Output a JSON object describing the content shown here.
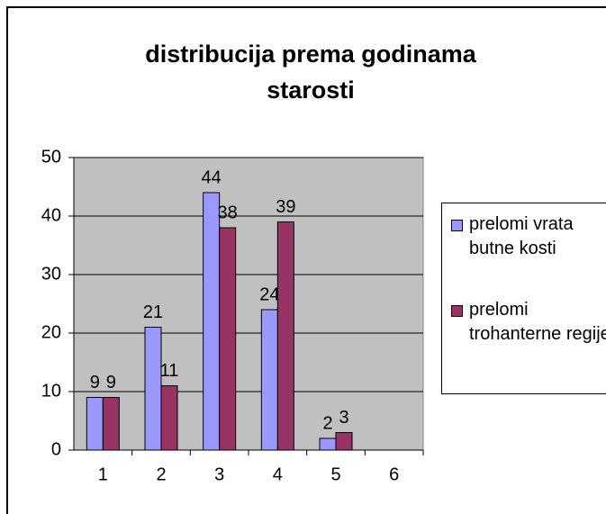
{
  "chart_data": {
    "type": "bar",
    "title": "distribucija prema godinama starosti",
    "categories": [
      "1",
      "2",
      "3",
      "4",
      "5",
      "6"
    ],
    "series": [
      {
        "name": "prelomi vrata butne kosti",
        "color": "#9999ff",
        "values": [
          9,
          21,
          44,
          24,
          2,
          null
        ]
      },
      {
        "name": "prelomi trohanterne regije",
        "color": "#993366",
        "values": [
          9,
          11,
          38,
          39,
          3,
          null
        ]
      }
    ],
    "ylim": [
      0,
      50
    ],
    "yticks": [
      0,
      10,
      20,
      30,
      40,
      50
    ],
    "grid": true,
    "legend": "right"
  }
}
